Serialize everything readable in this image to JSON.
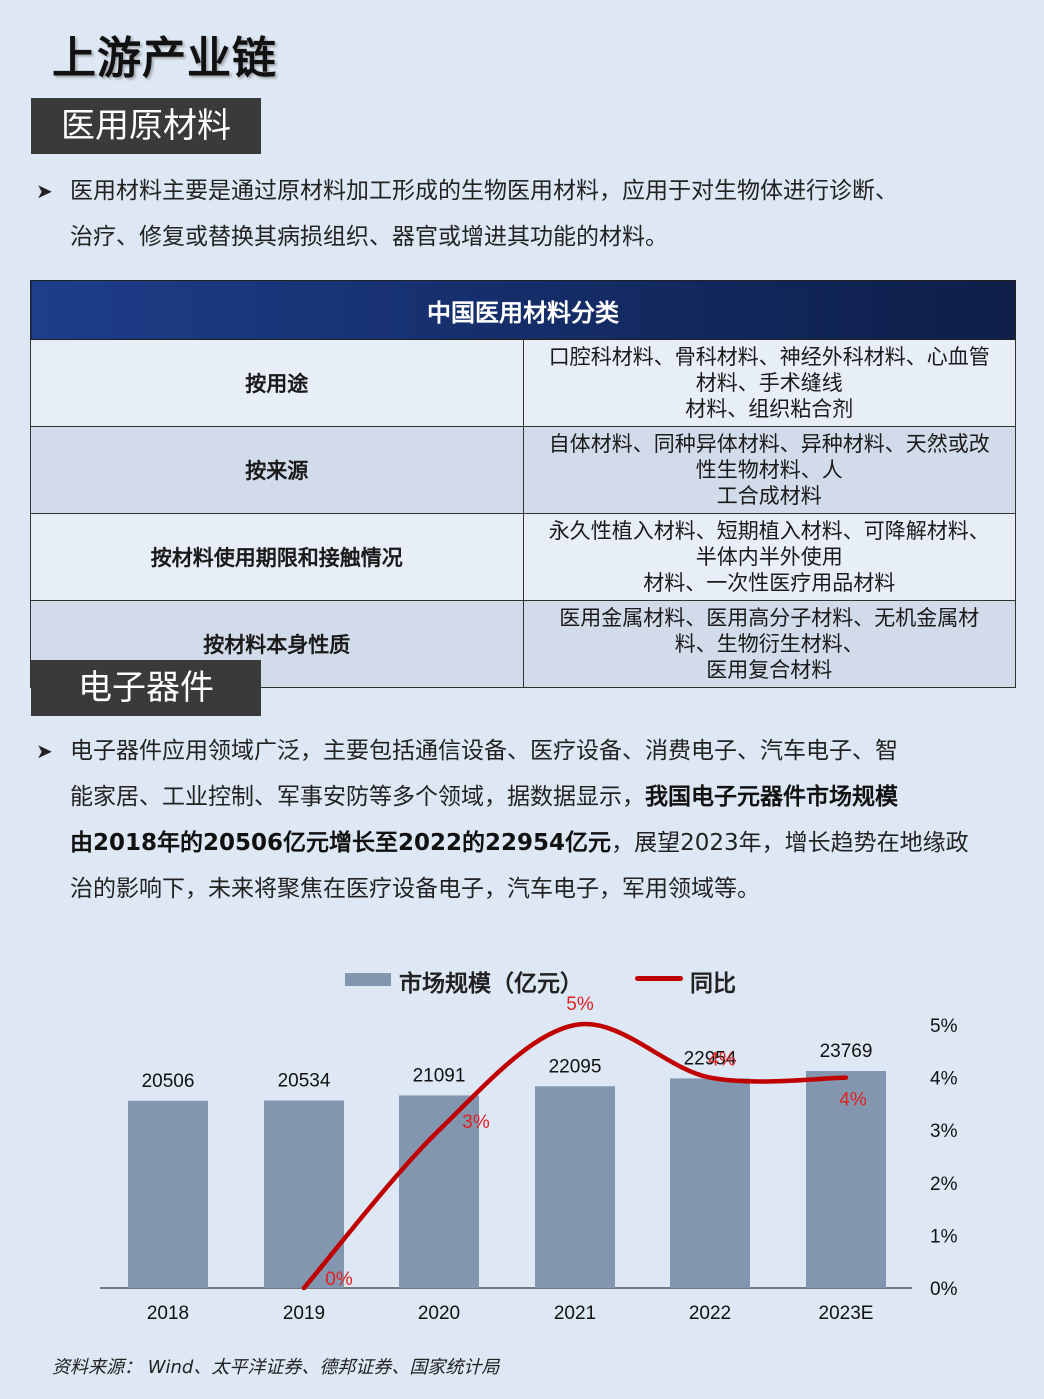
{
  "page_title": "上游产业链",
  "section1": {
    "header": "医用原材料",
    "bullet_lines": [
      "医用材料主要是通过原材料加工形成的生物医用材料，应用于对生物体进行诊断、",
      "治疗、修复或替换其病损组织、器官或增进其功能的材料。"
    ]
  },
  "table": {
    "title": "中国医用材料分类",
    "rows": [
      {
        "category": "按用途",
        "line1": "口腔科材料、骨科材料、神经外科材料、心血管材料、手术缝线",
        "line2": "材料、组织粘合剂"
      },
      {
        "category": "按来源",
        "line1": "自体材料、同种异体材料、异种材料、天然或改性生物材料、人",
        "line2": "工合成材料"
      },
      {
        "category": "按材料使用期限和接触情况",
        "line1": "永久性植入材料、短期植入材料、可降解材料、半体内半外使用",
        "line2": "材料、一次性医疗用品材料"
      },
      {
        "category": "按材料本身性质",
        "line1": "医用金属材料、医用高分子材料、无机金属材料、生物衍生材料、",
        "line2": "医用复合材料"
      }
    ]
  },
  "section2": {
    "header": "电子器件",
    "line1": "电子器件应用领域广泛，主要包括通信设备、医疗设备、消费电子、汽车电子、智",
    "line2_plain": "能家居、工业控制、军事安防等多个领域，据数据显示，",
    "line2_bold": "我国电子元器件市场规模",
    "line3_bold": "由2018年的20506亿元增长至2022的22954亿元",
    "line3_plain": "，展望2023年，增长趋势在地缘政",
    "line4": "治的影响下，未来将聚焦在医疗设备电子，汽车电子，军用领域等。"
  },
  "chart_data": {
    "type": "bar",
    "categories": [
      "2018",
      "2019",
      "2020",
      "2021",
      "2022",
      "2023E"
    ],
    "series": [
      {
        "name": "市场规模（亿元）",
        "type": "bar",
        "axis": "left",
        "values": [
          20506,
          20534,
          21091,
          22095,
          22954,
          23769
        ],
        "color": "#8396b0"
      },
      {
        "name": "同比",
        "type": "line",
        "axis": "right",
        "values": [
          null,
          0,
          3,
          5,
          4,
          4
        ],
        "labels": [
          null,
          "0%",
          "3%",
          "5%",
          "4%",
          "4%"
        ],
        "color": "#c00000"
      }
    ],
    "left_axis_range": [
      0,
      25000
    ],
    "right_axis": {
      "range": [
        0,
        5
      ],
      "ticks": [
        "0%",
        "1%",
        "2%",
        "3%",
        "4%",
        "5%"
      ]
    },
    "legend_position": "top"
  },
  "source": "资料来源： Wind、太平洋证券、德邦证券、国家统计局"
}
